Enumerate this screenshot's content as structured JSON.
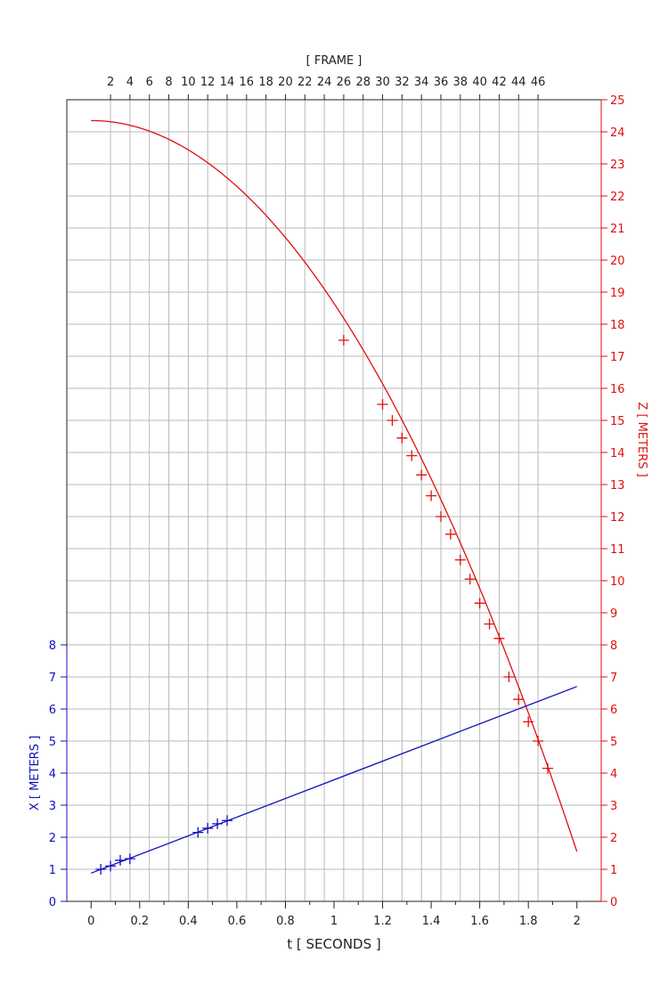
{
  "chart_data": {
    "type": "scatter",
    "xlabel": "t [ SECONDS ]",
    "x2label": "[ FRAME ]",
    "y_left_label": "X [ METERS ]",
    "y_right_label": "Z [ METERS ]",
    "xlim": [
      -0.1,
      2.1
    ],
    "x_ticks": [
      0,
      0.2,
      0.4,
      0.6,
      0.8,
      1,
      1.2,
      1.4,
      1.6,
      1.8,
      2
    ],
    "x_tick_labels": [
      "0",
      "0.2",
      "0.4",
      "0.6",
      "0.8",
      "1",
      "1.2",
      "1.4",
      "1.6",
      "1.8",
      "2"
    ],
    "frame_ticks": [
      2,
      4,
      6,
      8,
      10,
      12,
      14,
      16,
      18,
      20,
      22,
      24,
      26,
      28,
      30,
      32,
      34,
      36,
      38,
      40,
      42,
      44,
      46
    ],
    "frame_to_seconds": 0.04,
    "y_right_range": [
      0,
      25
    ],
    "y_left_range": [
      0,
      8
    ],
    "grid": true,
    "colors": {
      "axis": "#222222",
      "z_series": "#e01010",
      "x_series": "#1010c0",
      "grid": "#b9b9b9"
    },
    "z_curve": {
      "z0": 24.35,
      "g": 5.7
    },
    "x_line": {
      "t": [
        0,
        2
      ],
      "x": [
        0.88,
        6.7
      ]
    },
    "series": [
      {
        "axis": "right",
        "color": "#e01010",
        "points": [
          [
            1.04,
            17.5
          ],
          [
            1.2,
            15.5
          ],
          [
            1.24,
            15.0
          ],
          [
            1.28,
            14.45
          ],
          [
            1.32,
            13.9
          ],
          [
            1.36,
            13.3
          ],
          [
            1.4,
            12.65
          ],
          [
            1.44,
            12.0
          ],
          [
            1.48,
            11.45
          ],
          [
            1.52,
            10.65
          ],
          [
            1.56,
            10.05
          ],
          [
            1.6,
            9.3
          ],
          [
            1.64,
            8.65
          ],
          [
            1.68,
            8.2
          ],
          [
            1.72,
            7.0
          ],
          [
            1.76,
            6.3
          ],
          [
            1.8,
            5.6
          ],
          [
            1.84,
            5.0
          ],
          [
            1.88,
            4.15
          ]
        ]
      },
      {
        "axis": "left",
        "color": "#1010c0",
        "points": [
          [
            0.04,
            1.0
          ],
          [
            0.08,
            1.1
          ],
          [
            0.12,
            1.28
          ],
          [
            0.16,
            1.33
          ],
          [
            0.44,
            2.15
          ],
          [
            0.48,
            2.28
          ],
          [
            0.52,
            2.42
          ],
          [
            0.56,
            2.52
          ]
        ]
      }
    ]
  }
}
